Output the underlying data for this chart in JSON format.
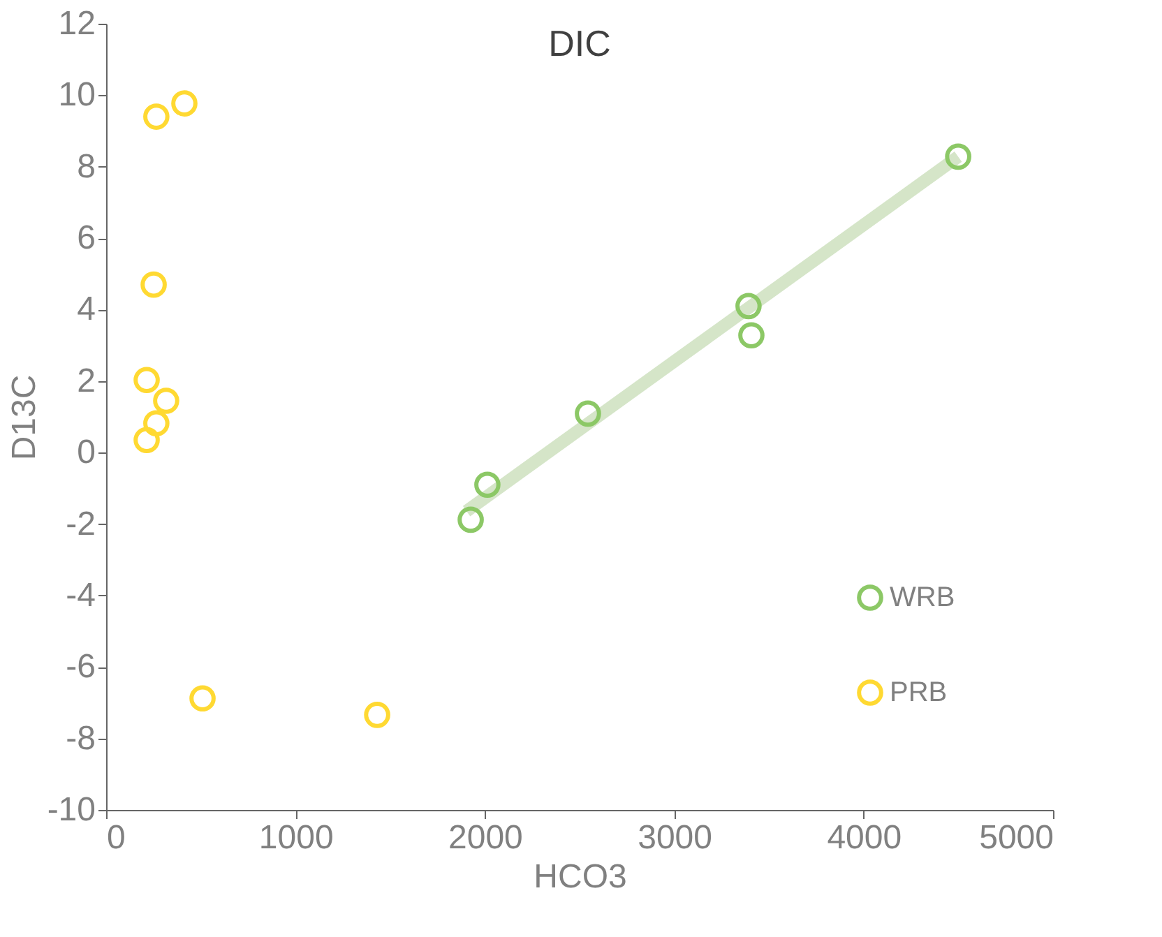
{
  "chart_data": {
    "type": "scatter",
    "title": "DIC",
    "xlabel": "HCO3",
    "ylabel": "D13C",
    "xlim": [
      0,
      5000
    ],
    "xticks": [
      0,
      1000,
      2000,
      3000,
      4000,
      5000
    ],
    "ylim": [
      -10,
      12
    ],
    "yticks": [
      -10,
      -8,
      -6,
      -4,
      -2,
      0,
      2,
      4,
      6,
      8,
      10,
      12
    ],
    "grid": false,
    "legend": "bottom right",
    "marker": "circle",
    "series": [
      {
        "name": "WRB",
        "color": "#8cc866",
        "x": [
          4499,
          3392,
          3407,
          2544,
          2013,
          1925
        ],
        "values": [
          8.28,
          4.1,
          3.28,
          1.09,
          -0.9,
          -1.88
        ]
      },
      {
        "name": "PRB",
        "color": "#ffd932",
        "x": [
          413,
          265,
          251,
          214,
          317,
          265,
          214,
          509,
          1431
        ],
        "values": [
          9.77,
          9.4,
          4.7,
          2.03,
          1.45,
          0.82,
          0.35,
          -6.88,
          -7.34
        ]
      },
      {
        "type": "line",
        "marker": "none",
        "color": "#d5e5c8",
        "line_style": "solid",
        "x": [
          1903,
          4499
        ],
        "values": [
          -1.64,
          8.28
        ]
      }
    ]
  }
}
